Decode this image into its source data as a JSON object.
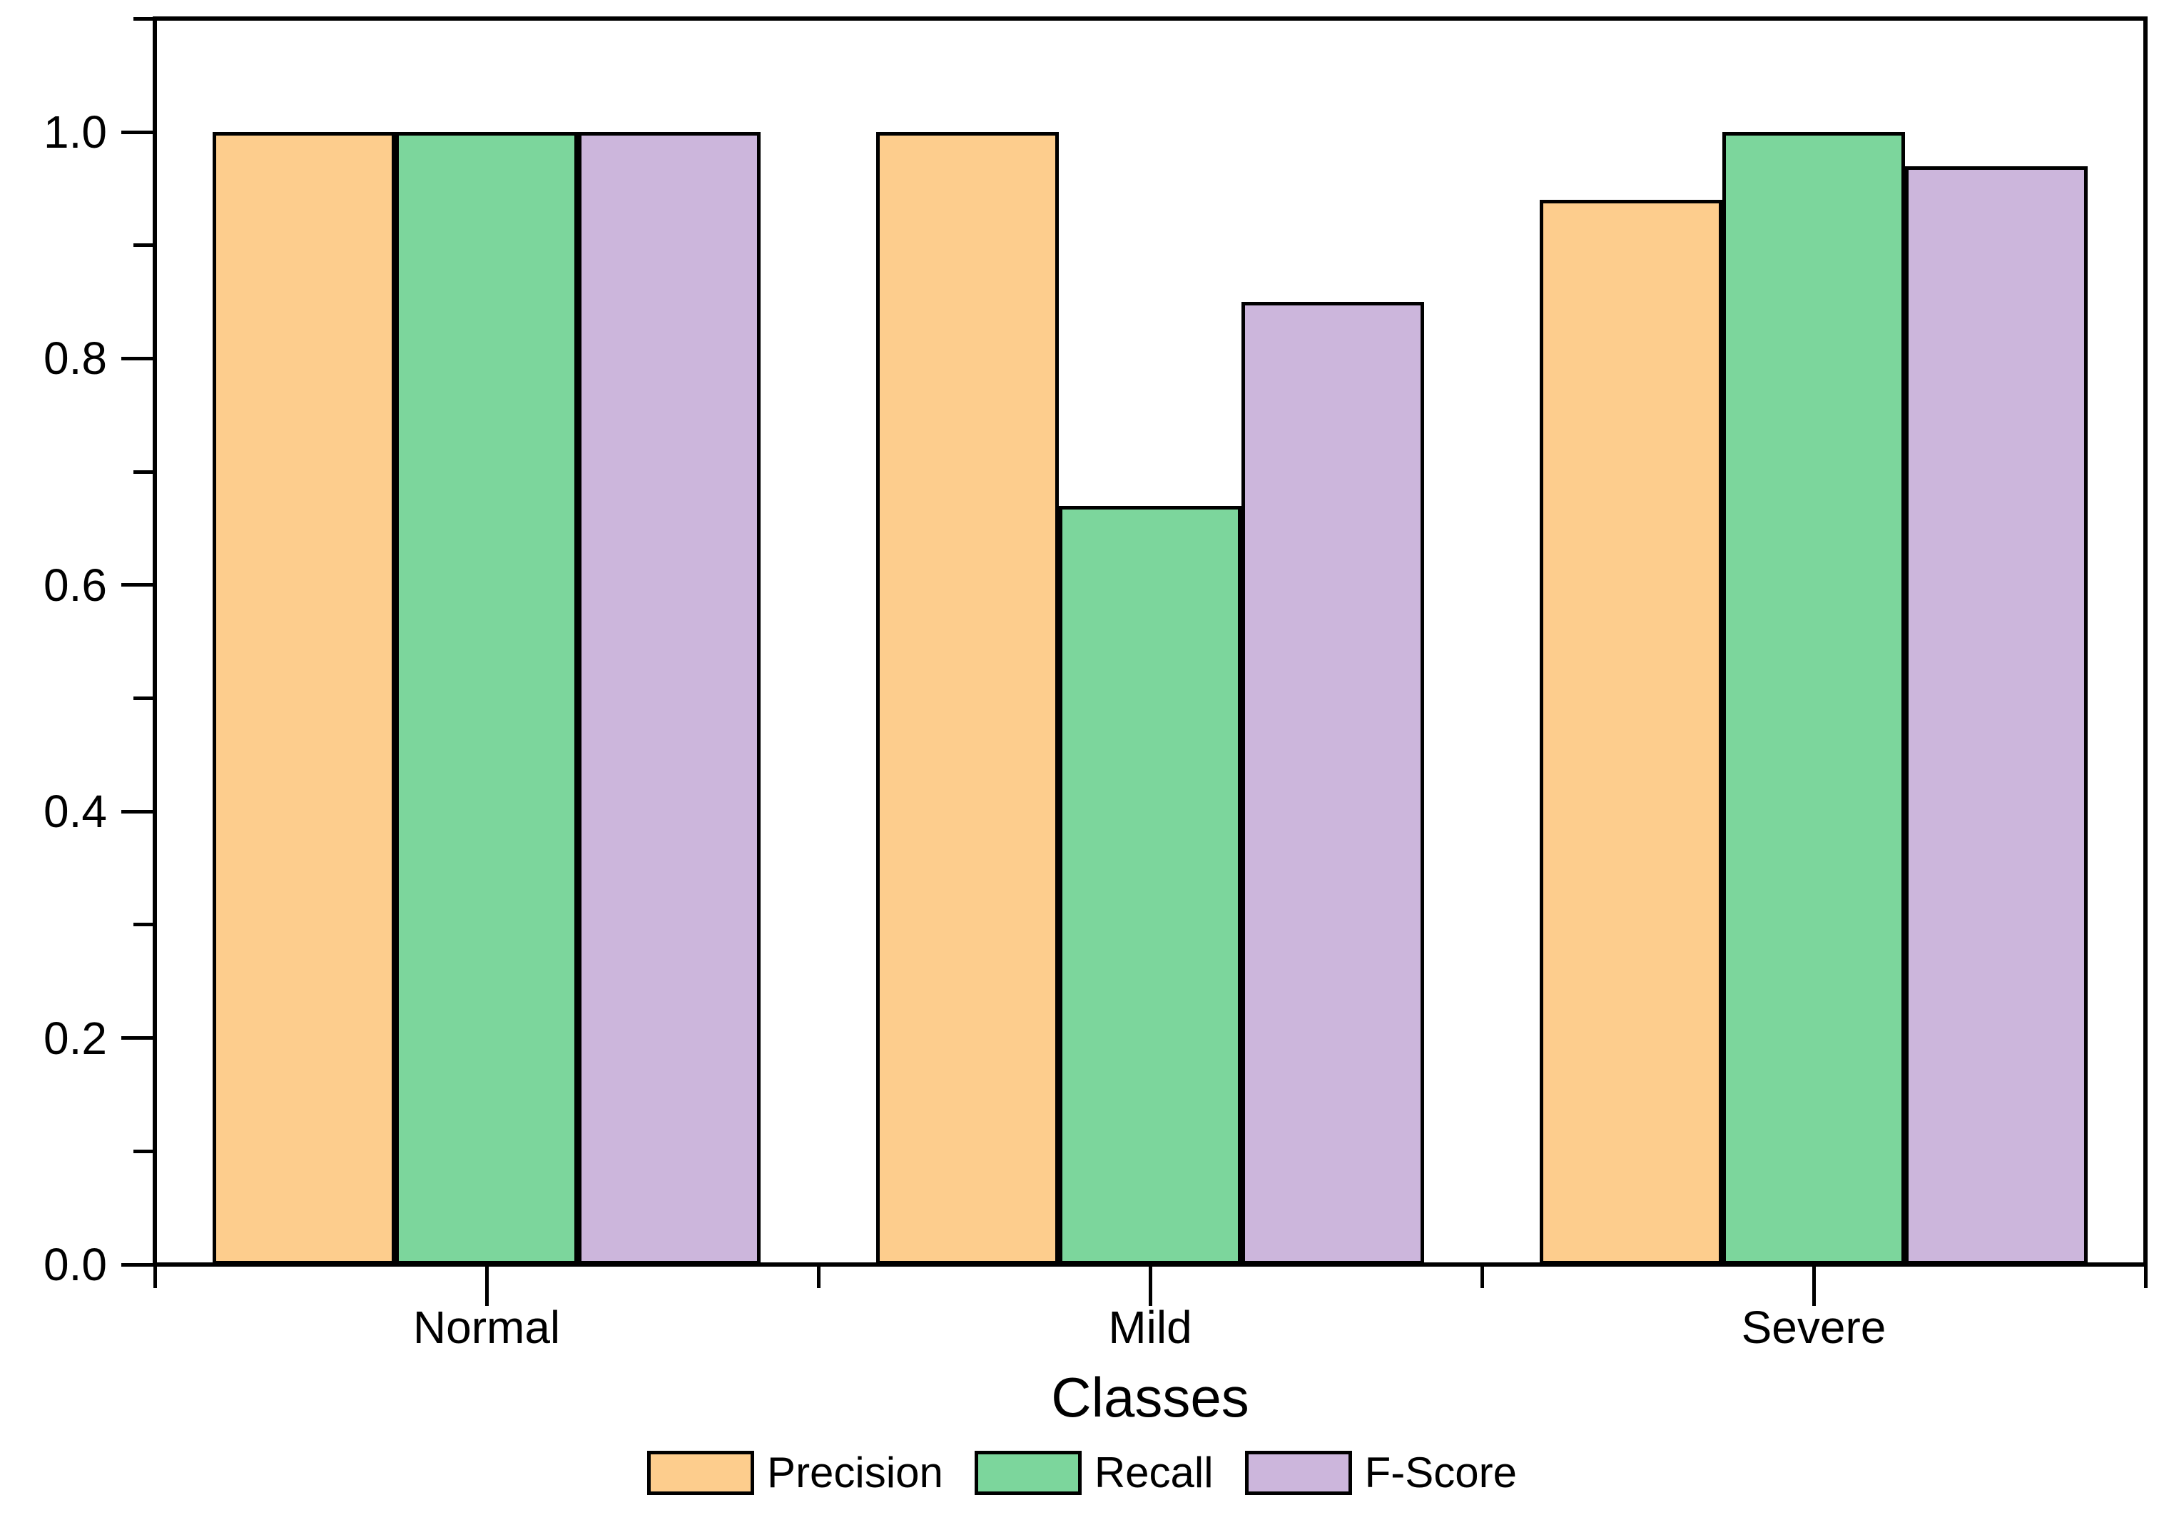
{
  "chart_data": {
    "type": "bar",
    "title": "",
    "xlabel": "Classes",
    "ylabel": "",
    "categories": [
      "Normal",
      "Mild",
      "Severe"
    ],
    "series": [
      {
        "name": "Precision",
        "color": "#FDCD8D",
        "values": [
          1.0,
          1.0,
          0.94
        ]
      },
      {
        "name": "Recall",
        "color": "#7CD69C",
        "values": [
          1.0,
          0.67,
          1.0
        ]
      },
      {
        "name": "F-Score",
        "color": "#CCB6DC",
        "values": [
          1.0,
          0.85,
          0.97
        ]
      }
    ],
    "ylim": [
      0,
      1.1
    ],
    "yticks": [
      0.0,
      0.2,
      0.4,
      0.6,
      0.8,
      1.0
    ],
    "ytick_labels": [
      "0.0",
      "0.2",
      "0.4",
      "0.6",
      "0.8",
      "1.0"
    ],
    "minor_yticks": [
      0.1,
      0.3,
      0.5,
      0.7,
      0.9,
      1.1
    ],
    "grid": false,
    "legend_position": "bottom",
    "colors": {
      "axis": "#000000",
      "text": "#000000",
      "background": "#ffffff",
      "bar_edge": "#000000"
    }
  }
}
